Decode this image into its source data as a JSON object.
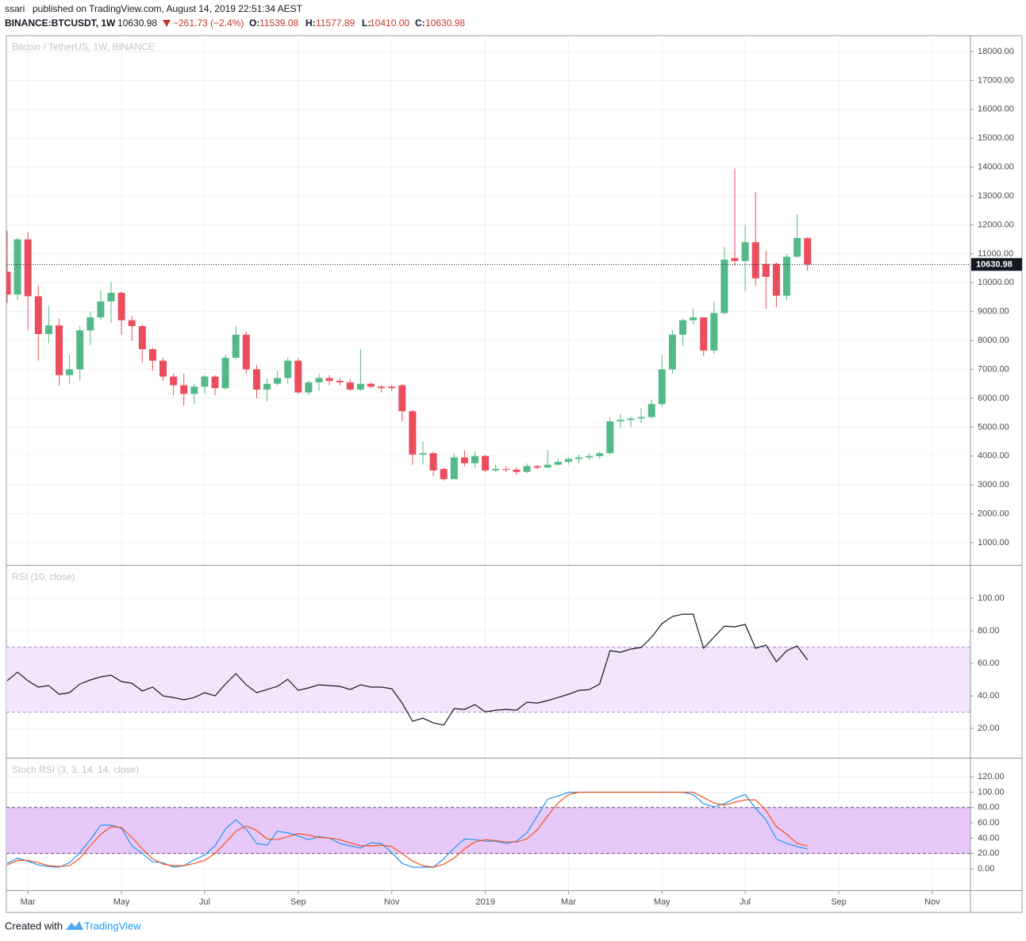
{
  "header": {
    "author": "ssari",
    "published": "published on TradingView.com, August 14, 2019 22:51:34 AEST",
    "symbol": "BINANCE:BTCUSDT, 1W",
    "price": "10630.98",
    "change": "−261.73 (−2.4%)",
    "ohlc": [
      {
        "key": "O:",
        "value": "11539.08"
      },
      {
        "key": "H:",
        "value": "11577.89"
      },
      {
        "key": "L:",
        "value": "10410.00"
      },
      {
        "key": "C:",
        "value": "10630.98"
      }
    ]
  },
  "footer": {
    "prefix": "Created with",
    "brand": "TradingView"
  },
  "chart_data": [
    {
      "type": "candlestick",
      "title": "Bitcoin / TetherUS, 1W, BINANCE",
      "up_color": "#53b987",
      "down_color": "#eb4d5c",
      "grid": true,
      "categories": [
        null,
        null,
        "Mar",
        null,
        null,
        null,
        null,
        null,
        null,
        null,
        null,
        "May",
        null,
        null,
        null,
        null,
        null,
        null,
        null,
        "Jul",
        null,
        null,
        null,
        null,
        null,
        null,
        null,
        null,
        "Sep",
        null,
        null,
        null,
        null,
        null,
        null,
        null,
        null,
        "Nov",
        null,
        null,
        null,
        null,
        null,
        null,
        null,
        null,
        "2019",
        null,
        null,
        null,
        null,
        null,
        null,
        null,
        "Mar",
        null,
        null,
        null,
        null,
        null,
        null,
        null,
        null,
        "May",
        null,
        null,
        null,
        null,
        null,
        null,
        null,
        "Jul",
        null,
        null,
        null,
        null,
        null,
        null,
        null,
        null,
        "Sep",
        null,
        null,
        null,
        null,
        null,
        null,
        null,
        null,
        "Nov",
        null,
        null,
        null
      ],
      "open": [
        10380,
        9590,
        11500,
        9530,
        8220,
        8520,
        6800,
        7000,
        8350,
        8800,
        9350,
        9650,
        8700,
        8500,
        7700,
        7300,
        6750,
        6450,
        6150,
        6400,
        6750,
        6350,
        7400,
        8200,
        7000,
        6300,
        6500,
        6700,
        7300,
        6200,
        6550,
        6700,
        6600,
        6550,
        6300,
        6500,
        6400,
        6400,
        6450,
        5550,
        4050,
        4100,
        3550,
        3200,
        3950,
        3750,
        4000,
        3500,
        3550,
        3530,
        3450,
        3650,
        3600,
        3700,
        3800,
        3900,
        3950,
        4000,
        4100,
        5200,
        5250,
        5300,
        5350,
        5800,
        7000,
        8200,
        8700,
        8800,
        7650,
        8950,
        10850,
        10750,
        11400,
        10650,
        10650,
        9550,
        10900,
        11539.08,
        null,
        null,
        null,
        null,
        null,
        null,
        null,
        null,
        null,
        null,
        null,
        null,
        null,
        null,
        null
      ],
      "high": [
        11800,
        11550,
        11750,
        9900,
        9200,
        8750,
        7500,
        8500,
        9000,
        9750,
        10030,
        9700,
        8850,
        8550,
        7750,
        7400,
        6850,
        6850,
        6500,
        6800,
        6800,
        7500,
        8500,
        8300,
        7150,
        6700,
        6950,
        7400,
        7400,
        6600,
        6850,
        6800,
        6700,
        6650,
        7700,
        6550,
        6450,
        6450,
        6500,
        5600,
        4500,
        4150,
        3600,
        4100,
        4200,
        4150,
        4050,
        3700,
        3650,
        3600,
        3750,
        3700,
        4200,
        3900,
        3950,
        4050,
        4100,
        4150,
        5350,
        5450,
        5350,
        5650,
        5950,
        7500,
        8350,
        8750,
        9100,
        8800,
        9350,
        11250,
        13950,
        12000,
        13150,
        11100,
        10700,
        11000,
        12350,
        11577.89,
        null,
        null,
        null,
        null,
        null,
        null,
        null,
        null,
        null,
        null,
        null,
        null,
        null,
        null,
        null
      ],
      "low": [
        9300,
        9400,
        8350,
        7300,
        7900,
        6430,
        6500,
        6600,
        7850,
        8700,
        8600,
        8200,
        8000,
        7250,
        6950,
        6600,
        6100,
        5750,
        5800,
        6150,
        6100,
        6300,
        7350,
        6850,
        6000,
        5900,
        6450,
        6500,
        6150,
        6100,
        6250,
        6450,
        6450,
        6250,
        6250,
        6350,
        6200,
        6250,
        5200,
        3700,
        3700,
        3300,
        3150,
        3200,
        3650,
        3600,
        3450,
        3450,
        3450,
        3350,
        3400,
        3550,
        3600,
        3650,
        3700,
        3750,
        3850,
        3900,
        4050,
        4950,
        5000,
        5150,
        5300,
        5700,
        6850,
        7800,
        8550,
        7450,
        7550,
        8900,
        10600,
        9700,
        9900,
        9100,
        9150,
        9400,
        10850,
        10410,
        null,
        null,
        null,
        null,
        null,
        null,
        null,
        null,
        null,
        null,
        null,
        null,
        null,
        null,
        null
      ],
      "close": [
        9590,
        11500,
        9530,
        8220,
        8520,
        6800,
        7000,
        8350,
        8800,
        9350,
        9650,
        8700,
        8500,
        7700,
        7300,
        6750,
        6450,
        6150,
        6400,
        6750,
        6350,
        7400,
        8200,
        7000,
        6300,
        6500,
        6700,
        7300,
        6200,
        6550,
        6700,
        6600,
        6550,
        6300,
        6500,
        6400,
        6350,
        6350,
        5550,
        4050,
        4100,
        3500,
        3200,
        3950,
        3750,
        4000,
        3500,
        3550,
        3530,
        3450,
        3650,
        3600,
        3700,
        3800,
        3900,
        3950,
        4000,
        4100,
        5200,
        5250,
        5300,
        5350,
        5800,
        7000,
        8200,
        8700,
        8800,
        7650,
        8950,
        10800,
        10750,
        11400,
        10150,
        10200,
        9550,
        10900,
        11550,
        10630.98,
        null,
        null,
        null,
        null,
        null,
        null,
        null,
        null,
        null,
        null,
        null,
        null,
        null,
        null,
        null
      ],
      "ylim": [
        231,
        18549
      ],
      "yticks": [
        {
          "value": 1000,
          "label": "1000.00"
        },
        {
          "value": 2000,
          "label": "2000.00"
        },
        {
          "value": 3000,
          "label": "3000.00"
        },
        {
          "value": 4000,
          "label": "4000.00"
        },
        {
          "value": 5000,
          "label": "5000.00"
        },
        {
          "value": 6000,
          "label": "6000.00"
        },
        {
          "value": 7000,
          "label": "7000.00"
        },
        {
          "value": 8000,
          "label": "8000.00"
        },
        {
          "value": 9000,
          "label": "9000.00"
        },
        {
          "value": 10000,
          "label": "10000.00"
        },
        {
          "value": 11000,
          "label": "11000.00"
        },
        {
          "value": 12000,
          "label": "12000.00"
        },
        {
          "value": 13000,
          "label": "13000.00"
        },
        {
          "value": 14000,
          "label": "14000.00"
        },
        {
          "value": 15000,
          "label": "15000.00"
        },
        {
          "value": 16000,
          "label": "16000.00"
        },
        {
          "value": 17000,
          "label": "17000.00"
        },
        {
          "value": 18000,
          "label": "18000.00"
        }
      ]
    },
    {
      "type": "line",
      "title": "RSI (10, close)",
      "grid": true,
      "band": [
        30,
        70
      ],
      "band_color": "#f3e5fc",
      "band_line": "#b48ac9",
      "series": [
        {
          "color": "#131722",
          "values": [
            49.3,
            54.6,
            49.3,
            45.4,
            46.3,
            41,
            42,
            47.3,
            49.8,
            51.7,
            52.7,
            48.8,
            47.8,
            43,
            45.4,
            40,
            39,
            37.6,
            39,
            42,
            40,
            47.3,
            53.7,
            46.8,
            42,
            43.9,
            45.9,
            50.2,
            43.4,
            44.9,
            46.8,
            46.3,
            45.9,
            43.9,
            46.8,
            45.4,
            45.4,
            44.4,
            35.6,
            24.4,
            26.3,
            23.4,
            22,
            32.2,
            31.7,
            34.6,
            30.2,
            31.2,
            31.7,
            31.2,
            36.1,
            35.6,
            37.1,
            39,
            41,
            43.4,
            43.9,
            47.3,
            67.8,
            66.8,
            68.8,
            69.8,
            76.1,
            84.4,
            88.8,
            90.2,
            90.2,
            69.3,
            76.1,
            82.9,
            82.4,
            83.9,
            69.3,
            71.2,
            61,
            67.8,
            70.7,
            62
          ]
        }
      ],
      "ylim": [
        2,
        120
      ],
      "yticks": [
        {
          "value": 20,
          "label": "20.00"
        },
        {
          "value": 40,
          "label": "40.00"
        },
        {
          "value": 60,
          "label": "60.00"
        },
        {
          "value": 80,
          "label": "80.00"
        },
        {
          "value": 100,
          "label": "100.00"
        }
      ]
    },
    {
      "type": "line",
      "title": "Stoch RSI (3, 3, 14, 14, close)",
      "grid": true,
      "band": [
        20,
        80
      ],
      "band_color": "#e6c9f8",
      "band_line": "#6b4a7a",
      "series": [
        {
          "color": "#2196f3",
          "values": [
            7,
            14,
            10,
            5,
            3,
            2,
            8,
            21,
            38,
            57,
            57,
            53,
            30,
            20,
            9,
            8,
            2,
            4,
            12,
            18,
            30,
            52,
            64,
            52,
            33,
            31,
            49,
            47,
            43,
            38,
            42,
            40,
            33,
            30,
            27,
            34,
            33,
            21,
            7,
            2,
            2,
            2,
            13,
            27,
            39,
            38,
            36,
            36,
            33,
            36,
            47,
            69,
            91,
            95,
            100,
            100,
            100,
            100,
            100,
            100,
            100,
            100,
            100,
            100,
            100,
            100,
            97,
            85,
            81,
            85,
            92,
            97,
            79,
            64,
            39,
            33,
            29,
            26
          ]
        },
        {
          "color": "#f4511e",
          "values": [
            5,
            11,
            11,
            8,
            4,
            3,
            4,
            14,
            30,
            45,
            55,
            54,
            41,
            26,
            13,
            6,
            4,
            4,
            7,
            11,
            20,
            34,
            49,
            56,
            50,
            39,
            38,
            42,
            46,
            44,
            41,
            40,
            38,
            34,
            30,
            30,
            31,
            29,
            20,
            10,
            4,
            2,
            6,
            14,
            26,
            35,
            38,
            37,
            35,
            35,
            39,
            51,
            69,
            86,
            97,
            100,
            100,
            100,
            100,
            100,
            100,
            100,
            100,
            100,
            100,
            100,
            100,
            93,
            86,
            83,
            87,
            90,
            90,
            76,
            55,
            45,
            33,
            30
          ]
        }
      ],
      "ylim": [
        -28,
        144
      ],
      "yticks": [
        {
          "value": 0,
          "label": "0.00"
        },
        {
          "value": 20,
          "label": "20.00"
        },
        {
          "value": 40,
          "label": "40.00"
        },
        {
          "value": 60,
          "label": "60.00"
        },
        {
          "value": 80,
          "label": "80.00"
        },
        {
          "value": 100,
          "label": "100.00"
        },
        {
          "value": 120,
          "label": "120.00"
        }
      ]
    }
  ]
}
